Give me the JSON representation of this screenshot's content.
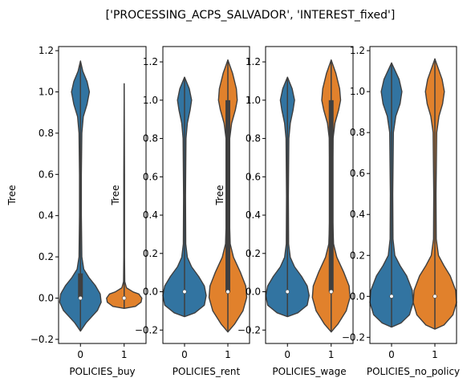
{
  "figure": {
    "suptitle": "['PROCESSING_ACPS_SALVADOR', 'INTEREST_fixed']"
  },
  "colors": {
    "category_0": "#3274a1",
    "category_1": "#e1812c",
    "outline": "#3f3f3f",
    "box": "#3f3f3f",
    "median": "#ffffff"
  },
  "chart_data": [
    {
      "type": "violin",
      "xlabel": "POLICIES_buy",
      "ylabel": "Tree",
      "categories": [
        "0",
        "1"
      ],
      "ylim": [
        -0.22,
        1.22
      ],
      "yticks": [
        -0.2,
        0.0,
        0.2,
        0.4,
        0.6,
        0.8,
        1.0,
        1.2
      ],
      "ytick_labels": [
        "−0.2",
        "0.0",
        "0.2",
        "0.4",
        "0.6",
        "0.8",
        "1.0",
        "1.2"
      ],
      "violins": [
        {
          "category": "0",
          "color": "category_0",
          "min": -0.16,
          "max": 1.15,
          "median": 0.0,
          "q1": 0.0,
          "q3": 0.12,
          "profile": [
            [
              -0.16,
              0.0
            ],
            [
              -0.12,
              0.12
            ],
            [
              -0.06,
              0.36
            ],
            [
              -0.02,
              0.44
            ],
            [
              0.02,
              0.42
            ],
            [
              0.06,
              0.32
            ],
            [
              0.1,
              0.18
            ],
            [
              0.14,
              0.07
            ],
            [
              0.2,
              0.03
            ],
            [
              0.4,
              0.02
            ],
            [
              0.6,
              0.02
            ],
            [
              0.8,
              0.03
            ],
            [
              0.88,
              0.06
            ],
            [
              0.94,
              0.14
            ],
            [
              1.0,
              0.19
            ],
            [
              1.05,
              0.14
            ],
            [
              1.1,
              0.05
            ],
            [
              1.15,
              0.0
            ]
          ]
        },
        {
          "category": "1",
          "color": "category_1",
          "min": -0.05,
          "max": 1.04,
          "median": 0.0,
          "q1": 0.0,
          "q3": 0.0,
          "profile": [
            [
              -0.05,
              0.0
            ],
            [
              -0.04,
              0.6
            ],
            [
              -0.02,
              0.9
            ],
            [
              0.0,
              0.94
            ],
            [
              0.02,
              0.78
            ],
            [
              0.03,
              0.48
            ],
            [
              0.05,
              0.12
            ],
            [
              0.08,
              0.03
            ],
            [
              0.2,
              0.02
            ],
            [
              0.6,
              0.02
            ],
            [
              1.04,
              0.0
            ]
          ]
        }
      ]
    },
    {
      "type": "violin",
      "xlabel": "POLICIES_rent",
      "ylabel": "Tree",
      "categories": [
        "0",
        "1"
      ],
      "ylim": [
        -0.27,
        1.28
      ],
      "yticks": [
        -0.2,
        0.0,
        0.2,
        0.4,
        0.6,
        0.8,
        1.0,
        1.2
      ],
      "ytick_labels": [
        "−0.2",
        "0.0",
        "0.2",
        "0.4",
        "0.6",
        "0.8",
        "1.0",
        "1.2"
      ],
      "violins": [
        {
          "category": "0",
          "color": "category_0",
          "min": -0.13,
          "max": 1.12,
          "median": 0.0,
          "q1": 0.0,
          "q3": 0.0,
          "profile": [
            [
              -0.13,
              0.0
            ],
            [
              -0.11,
              0.22
            ],
            [
              -0.07,
              0.42
            ],
            [
              -0.02,
              0.46
            ],
            [
              0.03,
              0.42
            ],
            [
              0.08,
              0.3
            ],
            [
              0.13,
              0.15
            ],
            [
              0.18,
              0.06
            ],
            [
              0.25,
              0.025
            ],
            [
              0.5,
              0.02
            ],
            [
              0.8,
              0.03
            ],
            [
              0.88,
              0.06
            ],
            [
              0.95,
              0.12
            ],
            [
              1.0,
              0.15
            ],
            [
              1.06,
              0.1
            ],
            [
              1.12,
              0.0
            ]
          ]
        },
        {
          "category": "1",
          "color": "category_1",
          "min": -0.21,
          "max": 1.21,
          "median": 0.0,
          "q1": 0.0,
          "q3": 1.0,
          "profile": [
            [
              -0.21,
              0.0
            ],
            [
              -0.17,
              0.14
            ],
            [
              -0.1,
              0.32
            ],
            [
              -0.03,
              0.4
            ],
            [
              0.03,
              0.38
            ],
            [
              0.1,
              0.27
            ],
            [
              0.18,
              0.12
            ],
            [
              0.25,
              0.05
            ],
            [
              0.4,
              0.03
            ],
            [
              0.6,
              0.03
            ],
            [
              0.8,
              0.04
            ],
            [
              0.88,
              0.08
            ],
            [
              0.95,
              0.16
            ],
            [
              1.0,
              0.2
            ],
            [
              1.06,
              0.18
            ],
            [
              1.14,
              0.1
            ],
            [
              1.21,
              0.0
            ]
          ]
        }
      ]
    },
    {
      "type": "violin",
      "xlabel": "POLICIES_wage",
      "ylabel": "Tree",
      "categories": [
        "0",
        "1"
      ],
      "ylim": [
        -0.27,
        1.28
      ],
      "yticks": [
        -0.2,
        0.0,
        0.2,
        0.4,
        0.6,
        0.8,
        1.0,
        1.2
      ],
      "ytick_labels": [
        "−0.2",
        "0.0",
        "0.2",
        "0.4",
        "0.6",
        "0.8",
        "1.0",
        "1.2"
      ],
      "violins": [
        {
          "category": "0",
          "color": "category_0",
          "min": -0.13,
          "max": 1.12,
          "median": 0.0,
          "q1": 0.0,
          "q3": 0.0,
          "profile": [
            [
              -0.13,
              0.0
            ],
            [
              -0.11,
              0.22
            ],
            [
              -0.07,
              0.42
            ],
            [
              -0.02,
              0.46
            ],
            [
              0.03,
              0.42
            ],
            [
              0.08,
              0.3
            ],
            [
              0.13,
              0.15
            ],
            [
              0.18,
              0.06
            ],
            [
              0.25,
              0.025
            ],
            [
              0.5,
              0.02
            ],
            [
              0.8,
              0.03
            ],
            [
              0.88,
              0.06
            ],
            [
              0.95,
              0.12
            ],
            [
              1.0,
              0.15
            ],
            [
              1.06,
              0.1
            ],
            [
              1.12,
              0.0
            ]
          ]
        },
        {
          "category": "1",
          "color": "category_1",
          "min": -0.21,
          "max": 1.21,
          "median": 0.0,
          "q1": 0.0,
          "q3": 1.0,
          "profile": [
            [
              -0.21,
              0.0
            ],
            [
              -0.17,
              0.14
            ],
            [
              -0.1,
              0.32
            ],
            [
              -0.03,
              0.4
            ],
            [
              0.03,
              0.38
            ],
            [
              0.1,
              0.27
            ],
            [
              0.18,
              0.12
            ],
            [
              0.25,
              0.05
            ],
            [
              0.4,
              0.03
            ],
            [
              0.6,
              0.03
            ],
            [
              0.8,
              0.04
            ],
            [
              0.88,
              0.08
            ],
            [
              0.95,
              0.16
            ],
            [
              1.0,
              0.2
            ],
            [
              1.06,
              0.18
            ],
            [
              1.14,
              0.1
            ],
            [
              1.21,
              0.0
            ]
          ]
        }
      ]
    },
    {
      "type": "violin",
      "xlabel": "POLICIES_no_policy",
      "ylabel": "",
      "categories": [
        "0",
        "1"
      ],
      "ylim": [
        -0.23,
        1.22
      ],
      "yticks": [
        -0.2,
        0.0,
        0.2,
        0.4,
        0.6,
        0.8,
        1.0,
        1.2
      ],
      "ytick_labels": [
        "−0.2",
        "0.0",
        "0.2",
        "0.4",
        "0.6",
        "0.8",
        "1.0",
        "1.2"
      ],
      "violins": [
        {
          "category": "0",
          "color": "category_0",
          "min": -0.15,
          "max": 1.14,
          "median": 0.0,
          "q1": 0.0,
          "q3": 0.0,
          "profile": [
            [
              -0.15,
              0.0
            ],
            [
              -0.13,
              0.2
            ],
            [
              -0.09,
              0.38
            ],
            [
              -0.03,
              0.46
            ],
            [
              0.03,
              0.44
            ],
            [
              0.1,
              0.32
            ],
            [
              0.15,
              0.18
            ],
            [
              0.2,
              0.07
            ],
            [
              0.28,
              0.03
            ],
            [
              0.5,
              0.025
            ],
            [
              0.8,
              0.04
            ],
            [
              0.88,
              0.09
            ],
            [
              0.94,
              0.18
            ],
            [
              1.0,
              0.22
            ],
            [
              1.06,
              0.16
            ],
            [
              1.14,
              0.0
            ]
          ]
        },
        {
          "category": "1",
          "color": "category_1",
          "min": -0.16,
          "max": 1.16,
          "median": 0.0,
          "q1": 0.0,
          "q3": 0.0,
          "profile": [
            [
              -0.16,
              0.0
            ],
            [
              -0.14,
              0.2
            ],
            [
              -0.09,
              0.4
            ],
            [
              -0.03,
              0.48
            ],
            [
              0.03,
              0.46
            ],
            [
              0.1,
              0.34
            ],
            [
              0.15,
              0.2
            ],
            [
              0.2,
              0.08
            ],
            [
              0.28,
              0.03
            ],
            [
              0.5,
              0.025
            ],
            [
              0.8,
              0.04
            ],
            [
              0.88,
              0.09
            ],
            [
              0.94,
              0.17
            ],
            [
              1.0,
              0.21
            ],
            [
              1.06,
              0.16
            ],
            [
              1.16,
              0.0
            ]
          ]
        }
      ]
    }
  ]
}
